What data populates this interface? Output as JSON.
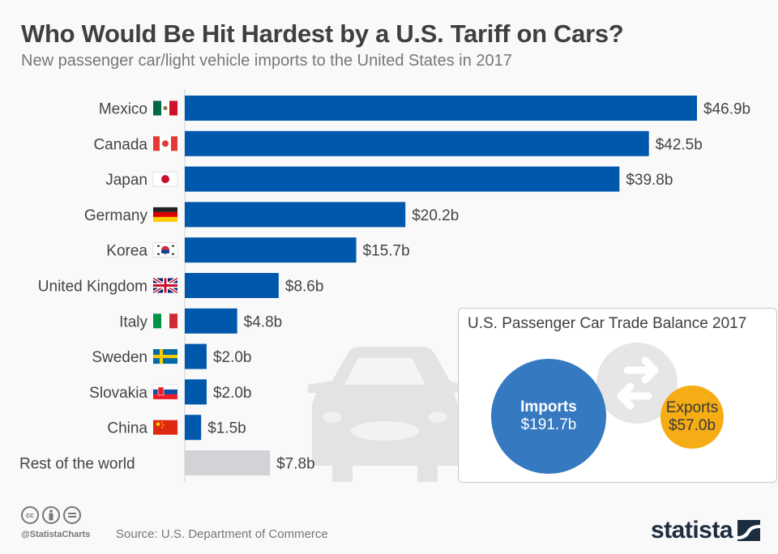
{
  "header": {
    "title": "Who Would Be Hit Hardest by a U.S. Tariff on Cars?",
    "subtitle": "New passenger car/light vehicle imports to the United States in 2017"
  },
  "colors": {
    "bar": "#0058ad",
    "rest_bar": "#d1d3d6",
    "imports": "#3579c1",
    "exports": "#f6ac14",
    "text": "#3f3f3f"
  },
  "chart_data": {
    "type": "bar",
    "orientation": "horizontal",
    "title": "Who Would Be Hit Hardest by a U.S. Tariff on Cars?",
    "subtitle": "New passenger car/light vehicle imports to the United States in 2017",
    "xlabel": "",
    "ylabel": "",
    "unit": "billion USD",
    "xlim": [
      0,
      46.9
    ],
    "grid": false,
    "categories": [
      "Mexico",
      "Canada",
      "Japan",
      "Germany",
      "Korea",
      "United Kingdom",
      "Italy",
      "Sweden",
      "Slovakia",
      "China",
      "Rest of the world"
    ],
    "flags": [
      "mexico-flag",
      "canada-flag",
      "japan-flag",
      "germany-flag",
      "korea-flag",
      "uk-flag",
      "italy-flag",
      "sweden-flag",
      "slovakia-flag",
      "china-flag",
      null
    ],
    "values": [
      46.9,
      42.5,
      39.8,
      20.2,
      15.7,
      8.6,
      4.8,
      2.0,
      2.0,
      1.5,
      7.8
    ],
    "labels": [
      "$46.9b",
      "$42.5b",
      "$39.8b",
      "$20.2b",
      "$15.7b",
      "$8.6b",
      "$4.8b",
      "$2.0b",
      "$2.0b",
      "$1.5b",
      "$7.8b"
    ]
  },
  "inset": {
    "title": "U.S. Passenger Car Trade Balance 2017",
    "imports": {
      "label": "Imports",
      "value": "$191.7b",
      "amount": 191.7
    },
    "exports": {
      "label": "Exports",
      "value": "$57.0b",
      "amount": 57.0
    },
    "icon": "swap-arrows-icon"
  },
  "footer": {
    "license_icons": [
      "cc",
      "by",
      "nd"
    ],
    "handle": "@StatistaCharts",
    "source": "Source: U.S. Department of Commerce",
    "logo": "statista"
  }
}
